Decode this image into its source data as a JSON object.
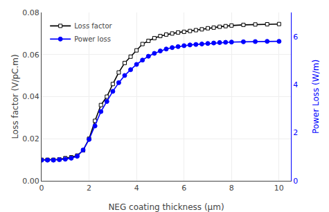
{
  "chart_data": {
    "type": "line",
    "xlabel": "NEG coating thickness (μm)",
    "ylabel": "Loss factor (V/pC.m)",
    "y2label": "Power Loss (W/m)",
    "x": [
      0.0,
      0.25,
      0.5,
      0.75,
      1.0,
      1.25,
      1.5,
      1.75,
      2.0,
      2.25,
      2.5,
      2.75,
      3.0,
      3.25,
      3.5,
      3.75,
      4.0,
      4.25,
      4.5,
      4.75,
      5.0,
      5.25,
      5.5,
      5.75,
      6.0,
      6.25,
      6.5,
      6.75,
      7.0,
      7.25,
      7.5,
      7.75,
      8.0,
      8.5,
      9.0,
      9.5,
      10.0
    ],
    "series": [
      {
        "name": "Loss factor",
        "color": "#000000",
        "marker": "square",
        "values": [
          0.01,
          0.01,
          0.01,
          0.0102,
          0.0108,
          0.0112,
          0.012,
          0.0145,
          0.02,
          0.0285,
          0.036,
          0.04,
          0.046,
          0.0515,
          0.056,
          0.059,
          0.062,
          0.065,
          0.0665,
          0.0678,
          0.0688,
          0.0695,
          0.07,
          0.0705,
          0.0708,
          0.0712,
          0.0716,
          0.072,
          0.0725,
          0.0728,
          0.0732,
          0.0735,
          0.0738,
          0.0741,
          0.0743,
          0.0744,
          0.0745
        ]
      },
      {
        "name": "Power loss",
        "color": "#0000ff",
        "marker": "circle",
        "axis": "y2",
        "values": [
          0.86,
          0.86,
          0.86,
          0.88,
          0.9,
          0.94,
          1.02,
          1.28,
          1.72,
          2.28,
          2.88,
          3.3,
          3.72,
          4.08,
          4.38,
          4.62,
          4.84,
          5.02,
          5.18,
          5.3,
          5.4,
          5.48,
          5.54,
          5.58,
          5.62,
          5.65,
          5.67,
          5.69,
          5.71,
          5.73,
          5.75,
          5.76,
          5.77,
          5.78,
          5.79,
          5.8,
          5.8
        ]
      }
    ],
    "xlim": [
      0,
      10.5
    ],
    "xticks": [
      0,
      2,
      4,
      6,
      8,
      10
    ],
    "ylim": [
      0.0,
      0.08
    ],
    "yticks": [
      {
        "value": 0,
        "label": "0.00"
      },
      {
        "value": 0.02,
        "label": "0.02"
      },
      {
        "value": 0.04,
        "label": "0.04"
      },
      {
        "value": 0.06,
        "label": "0.06"
      },
      {
        "value": 0.08,
        "label": "0.08"
      }
    ],
    "y2lim": [
      0.0,
      7.0
    ],
    "y2ticks": [
      0,
      2,
      4,
      6
    ],
    "legend": "upper left"
  }
}
